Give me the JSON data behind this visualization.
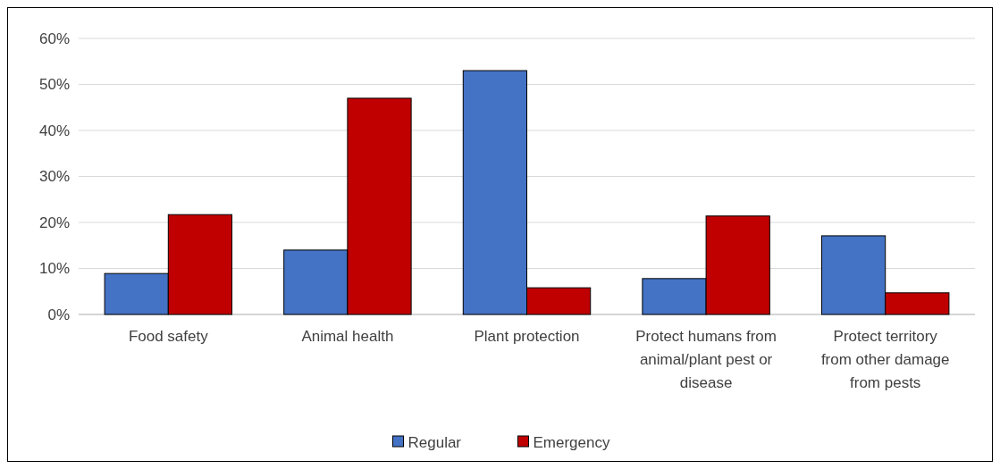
{
  "chart_data": {
    "type": "bar",
    "categories": [
      "Food safety",
      "Animal health",
      "Plant protection",
      "Protect humans from animal/plant pest or disease",
      "Protect territory from other damage from pests"
    ],
    "series": [
      {
        "name": "Regular",
        "color": "#4472c4",
        "values": [
          8.9,
          14.0,
          53.0,
          7.8,
          17.1
        ]
      },
      {
        "name": "Emergency",
        "color": "#c00000",
        "values": [
          21.7,
          47.0,
          5.8,
          21.4,
          4.7
        ]
      }
    ],
    "ylim": [
      0,
      60
    ],
    "yticks": [
      {
        "value": 0,
        "label": "0%"
      },
      {
        "value": 10,
        "label": "10%"
      },
      {
        "value": 20,
        "label": "20%"
      },
      {
        "value": 30,
        "label": "30%"
      },
      {
        "value": 40,
        "label": "40%"
      },
      {
        "value": 50,
        "label": "50%"
      },
      {
        "value": 60,
        "label": "60%"
      }
    ],
    "grid": "y",
    "legend": "bottom"
  }
}
